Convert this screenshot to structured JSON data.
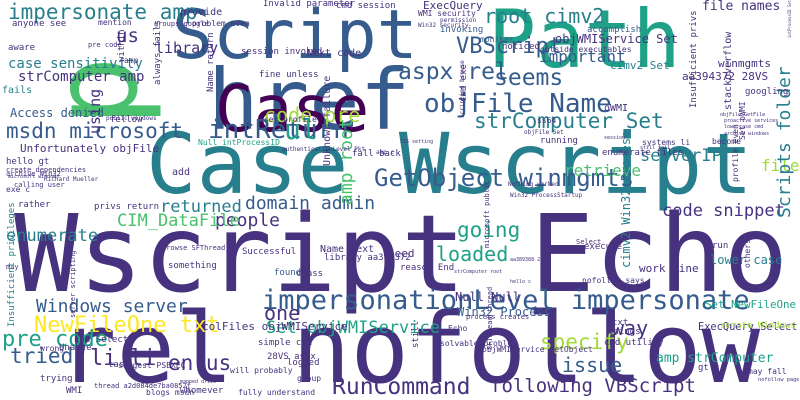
{
  "palette": {
    "dark_purple": "#440154",
    "indigo": "#46327e",
    "blue": "#365c8d",
    "steel_blue": "#277f8e",
    "teal": "#1fa187",
    "green": "#4ac16d",
    "lime": "#a0da39",
    "yellow": "#fde725"
  },
  "words": [
    {
      "id": "wscript-echo",
      "text": "Wscript Echo",
      "c": "indigo"
    },
    {
      "id": "rel-nofollow",
      "text": "rel nofollow",
      "c": "indigo"
    },
    {
      "id": "case-wscript",
      "text": "Case Wscript",
      "c": "steel_blue"
    },
    {
      "id": "href",
      "text": "href",
      "c": "blue"
    },
    {
      "id": "script",
      "text": "Script",
      "c": "blue"
    },
    {
      "id": "path",
      "text": "Path",
      "c": "teal"
    },
    {
      "id": "p",
      "text": "p",
      "c": "green"
    },
    {
      "id": "case",
      "text": "Case",
      "c": "dark_purple"
    },
    {
      "id": "impersonationlevel-impersonate",
      "text": "impersonationLevel impersonate",
      "c": "blue"
    },
    {
      "id": "objfile-name",
      "text": "objFile Name",
      "c": "blue"
    },
    {
      "id": "intreturn",
      "text": "intReturn",
      "c": "blue"
    },
    {
      "id": "msdn-microsoft",
      "text": "msdn microsoft",
      "c": "blue"
    },
    {
      "id": "getobject-winmgmts",
      "text": "GetObject winmgmts",
      "c": "blue"
    },
    {
      "id": "aspx-rel",
      "text": "aspx rel",
      "c": "blue"
    },
    {
      "id": "vbscript",
      "text": "VBScript",
      "c": "blue"
    },
    {
      "id": "root-cimv2",
      "text": "root cimv2",
      "c": "steel_blue"
    },
    {
      "id": "seems",
      "text": "seems",
      "c": "blue"
    },
    {
      "id": "strcomputer-set",
      "text": "strComputer Set",
      "c": "steel_blue"
    },
    {
      "id": "newfileone-txt",
      "text": "NewFileOne txt",
      "c": "yellow"
    },
    {
      "id": "runcommand",
      "text": "RunCommand",
      "c": "indigo"
    },
    {
      "id": "windows-server",
      "text": "Windows server",
      "c": "blue"
    },
    {
      "id": "following-vbscript",
      "text": "following VBScript",
      "c": "indigo"
    },
    {
      "id": "specify",
      "text": "specify",
      "c": "lime"
    },
    {
      "id": "pre-code-2",
      "text": "pre code",
      "c": "teal"
    },
    {
      "id": "li-li",
      "text": "li li",
      "c": "indigo"
    },
    {
      "id": "en-us",
      "text": "en us",
      "c": "indigo"
    },
    {
      "id": "tried",
      "text": "tried",
      "c": "blue"
    },
    {
      "id": "issue",
      "text": "issue",
      "c": "blue"
    },
    {
      "id": "set-objwmiservice",
      "text": "Set objWMIService",
      "c": "teal"
    },
    {
      "id": "one",
      "text": "one",
      "c": "indigo"
    },
    {
      "id": "way",
      "text": "way",
      "c": "indigo"
    },
    {
      "id": "loaded",
      "text": "loaded",
      "c": "teal"
    },
    {
      "id": "going",
      "text": "going",
      "c": "teal"
    },
    {
      "id": "code-snippet",
      "text": "code snippet",
      "c": "indigo"
    },
    {
      "id": "domain-admin",
      "text": "domain admin",
      "c": "blue"
    },
    {
      "id": "people",
      "text": "people",
      "c": "indigo"
    },
    {
      "id": "returned",
      "text": "returned",
      "c": "steel_blue"
    },
    {
      "id": "cim-datafile",
      "text": "CIM_DataFile",
      "c": "green"
    },
    {
      "id": "enumerate",
      "text": "enumerate",
      "c": "steel_blue"
    },
    {
      "id": "impersonate-amp",
      "text": "impersonate amp",
      "c": "steel_blue"
    },
    {
      "id": "case-sensitivity",
      "text": "case sensitivity",
      "c": "steel_blue"
    },
    {
      "id": "strcomputer-amp",
      "text": "strComputer amp",
      "c": "indigo"
    },
    {
      "id": "access-denied",
      "text": "Access denied",
      "c": "blue"
    },
    {
      "id": "unfortunately-objfile",
      "text": "Unfortunately objFile",
      "c": "indigo"
    },
    {
      "id": "us",
      "text": "us",
      "c": "indigo"
    },
    {
      "id": "library",
      "text": "library",
      "c": "indigo"
    },
    {
      "id": "using",
      "text": "using",
      "c": "indigo"
    },
    {
      "id": "code-pre",
      "text": "code pre",
      "c": "lime"
    },
    {
      "id": "amp-root",
      "text": "amp root",
      "c": "green"
    },
    {
      "id": "ul",
      "text": "ul",
      "c": "teal"
    },
    {
      "id": "serverip",
      "text": "serverIP",
      "c": "steel_blue"
    },
    {
      "id": "retrieve",
      "text": "retrieve",
      "c": "green"
    },
    {
      "id": "important",
      "text": "important",
      "c": "blue"
    },
    {
      "id": "file",
      "text": "file",
      "c": "lime"
    },
    {
      "id": "scripts-folder",
      "text": "Scripts folder",
      "c": "steel_blue"
    },
    {
      "id": "file-names",
      "text": "file names",
      "c": "indigo"
    },
    {
      "id": "objwmiservice-set",
      "text": "objWMIService Set",
      "c": "indigo"
    },
    {
      "id": "aa394372-28vs",
      "text": "aa394372 28VS",
      "c": "indigo"
    },
    {
      "id": "winmgmts",
      "text": "winmgmts",
      "c": "indigo"
    },
    {
      "id": "cimv2-set",
      "text": "cimv2 Set",
      "c": "steel_blue"
    },
    {
      "id": "cimv2-win32-process",
      "text": "cimv2 Win32 Process",
      "c": "steel_blue"
    },
    {
      "id": "win32-process",
      "text": "Win32 Process",
      "c": "blue"
    },
    {
      "id": "null-null",
      "text": "Null Null",
      "c": "indigo"
    },
    {
      "id": "need",
      "text": "need",
      "c": "indigo"
    },
    {
      "id": "work-fine",
      "text": "work fine",
      "c": "indigo"
    },
    {
      "id": "lower-case",
      "text": "lower case",
      "c": "steel_blue"
    },
    {
      "id": "execquery-select",
      "text": "ExecQuery Select",
      "c": "indigo"
    },
    {
      "id": "amp-strcomputer",
      "text": "amp strComputer",
      "c": "teal"
    },
    {
      "id": "set-newfileone",
      "text": "Set NewFileOne",
      "c": "teal"
    },
    {
      "id": "colfiles-objwmiservice",
      "text": "colFiles objWMIService",
      "c": "indigo"
    },
    {
      "id": "execquery",
      "text": "ExecQuery",
      "c": "indigo"
    },
    {
      "id": "invalid-parameter",
      "text": "Invalid parameter",
      "c": "indigo"
    },
    {
      "id": "cmd-session",
      "text": "cmd session",
      "c": "indigo"
    },
    {
      "id": "wmi-security",
      "text": "WMI security",
      "c": "indigo"
    },
    {
      "id": "session-invoked",
      "text": "session invoked",
      "c": "indigo"
    },
    {
      "id": "next-code",
      "text": "Next code",
      "c": "indigo"
    },
    {
      "id": "invoking",
      "text": "invoking",
      "c": "blue"
    },
    {
      "id": "accomplish",
      "text": "accomplish",
      "c": "blue"
    },
    {
      "id": "noticed",
      "text": "noticed",
      "c": "indigo"
    },
    {
      "id": "outside-executables",
      "text": "outside executables",
      "c": "indigo"
    },
    {
      "id": "moniker",
      "text": "moniker",
      "c": "blue"
    },
    {
      "id": "fine-unless",
      "text": "fine unless",
      "c": "indigo"
    },
    {
      "id": "null-intprocessid",
      "text": "Null intProcessID",
      "c": "teal"
    },
    {
      "id": "name-next",
      "text": "Name Next",
      "c": "indigo"
    },
    {
      "id": "library-aa394372",
      "text": "library aa394372",
      "c": "indigo"
    },
    {
      "id": "successful",
      "text": "Successful",
      "c": "indigo"
    },
    {
      "id": "found",
      "text": "found",
      "c": "blue"
    },
    {
      "id": "class",
      "text": "class",
      "c": "indigo"
    },
    {
      "id": "echo",
      "text": "Echo",
      "c": "indigo"
    },
    {
      "id": "simple-cmd",
      "text": "simple cmd",
      "c": "indigo"
    },
    {
      "id": "28vs-aspx",
      "text": "28VS aspx",
      "c": "indigo"
    },
    {
      "id": "unable",
      "text": "Unable",
      "c": "indigo"
    },
    {
      "id": "end-select",
      "text": "End Select",
      "c": "indigo"
    },
    {
      "id": "insufficient-privileges",
      "text": "Insufficient privileges",
      "c": "steel_blue"
    },
    {
      "id": "wrong",
      "text": "wrong",
      "c": "indigo"
    },
    {
      "id": "trying",
      "text": "trying",
      "c": "indigo"
    },
    {
      "id": "wmi",
      "text": "WMI",
      "c": "indigo"
    },
    {
      "id": "task",
      "text": "task",
      "c": "indigo"
    },
    {
      "id": "group",
      "text": "group",
      "c": "indigo"
    },
    {
      "id": "logged",
      "text": "logged",
      "c": "indigo"
    },
    {
      "id": "things",
      "text": "things",
      "c": "indigo"
    },
    {
      "id": "txt",
      "text": "txt",
      "c": "indigo"
    },
    {
      "id": "cmd-utility",
      "text": "cmd utility",
      "c": "indigo"
    },
    {
      "id": "remote-windows",
      "text": "remote Windows",
      "c": "lime"
    },
    {
      "id": "may-fall",
      "text": "may fall",
      "c": "indigo"
    },
    {
      "id": "gt-c",
      "text": "gt c",
      "c": "indigo"
    },
    {
      "id": "execute",
      "text": "execute",
      "c": "indigo"
    },
    {
      "id": "run",
      "text": "run",
      "c": "indigo"
    },
    {
      "id": "others",
      "text": "others",
      "c": "indigo"
    },
    {
      "id": "select",
      "text": "Select",
      "c": "indigo"
    },
    {
      "id": "enumerate-files",
      "text": "enumerate files",
      "c": "indigo"
    },
    {
      "id": "running",
      "text": "running",
      "c": "indigo"
    },
    {
      "id": "systems-li",
      "text": "systems li",
      "c": "indigo"
    },
    {
      "id": "become",
      "text": "become",
      "c": "indigo"
    },
    {
      "id": "ss64",
      "text": "ss64",
      "c": "indigo"
    },
    {
      "id": "googling",
      "text": "googling",
      "c": "indigo"
    },
    {
      "id": "intprocessid-set",
      "text": "intProcessID Set",
      "c": "indigo"
    },
    {
      "id": "owmi",
      "text": "oWMI",
      "c": "indigo"
    },
    {
      "id": "anyone-see",
      "text": "anyone see",
      "c": "indigo"
    },
    {
      "id": "mention",
      "text": "mention",
      "c": "indigo"
    },
    {
      "id": "aware",
      "text": "aware",
      "c": "indigo"
    },
    {
      "id": "fails",
      "text": "fails",
      "c": "steel_blue"
    },
    {
      "id": "hello-gt",
      "text": "hello gt",
      "c": "indigo"
    },
    {
      "id": "add",
      "text": "add",
      "c": "indigo"
    },
    {
      "id": "something",
      "text": "something",
      "c": "indigo"
    },
    {
      "id": "reason-end",
      "text": "reason End",
      "c": "indigo"
    },
    {
      "id": "rather",
      "text": "rather",
      "c": "indigo"
    },
    {
      "id": "privs-return",
      "text": "privs return",
      "c": "indigo"
    },
    {
      "id": "may",
      "text": "may",
      "c": "indigo"
    },
    {
      "id": "whomever",
      "text": "whomever",
      "c": "indigo"
    },
    {
      "id": "blogs-msdn",
      "text": "blogs msdn",
      "c": "indigo"
    },
    {
      "id": "fully-understand",
      "text": "fully understand",
      "c": "indigo"
    },
    {
      "id": "will-probably",
      "text": "will probably",
      "c": "indigo"
    },
    {
      "id": "suggest-psexec",
      "text": "suggest PSEXEC",
      "c": "indigo"
    },
    {
      "id": "provide",
      "text": "provide",
      "c": "indigo"
    },
    {
      "id": "user-profile",
      "text": "user profile",
      "c": "indigo"
    },
    {
      "id": "unknown-failure",
      "text": "Unknown failure",
      "c": "indigo"
    },
    {
      "id": "fall-back",
      "text": "fall back",
      "c": "indigo"
    },
    {
      "id": "nofollow-says",
      "text": "nofollow says",
      "c": "indigo"
    },
    {
      "id": "objwmiservice-getobject",
      "text": "objWMIService GetObject",
      "c": "indigo"
    },
    {
      "id": "cmd-exe",
      "text": "cmd exe",
      "c": "indigo"
    },
    {
      "id": "thread-a2d084de7ba0852f",
      "text": "thread a2d084de7ba0852f",
      "c": "indigo"
    },
    {
      "id": "server-scripting",
      "text": "server scripting",
      "c": "indigo"
    },
    {
      "id": "process-creates",
      "text": "process creates",
      "c": "indigo"
    },
    {
      "id": "solvable-problem",
      "text": "solvable problem",
      "c": "indigo"
    },
    {
      "id": "fellow",
      "text": "fellow",
      "c": "indigo"
    },
    {
      "id": "within",
      "text": "within",
      "c": "indigo"
    },
    {
      "id": "always-fails",
      "text": "always fails",
      "c": "indigo"
    },
    {
      "id": "name-return",
      "text": "Name return",
      "c": "indigo"
    },
    {
      "id": "problem-even",
      "text": "problem even",
      "c": "indigo"
    },
    {
      "id": "create-dependencies",
      "text": "create dependencies",
      "c": "indigo"
    },
    {
      "id": "archive-win32",
      "text": "archive Win32",
      "c": "indigo"
    },
    {
      "id": "exe-c",
      "text": "exe c",
      "c": "indigo"
    },
    {
      "id": "calling-user",
      "text": "calling user",
      "c": "indigo"
    },
    {
      "id": "browse-sfthread",
      "text": "browse SFThread",
      "c": "indigo"
    },
    {
      "id": "microsoft-public",
      "text": "microsoft public",
      "c": "indigo"
    },
    {
      "id": "stackoverflow",
      "text": "stackoverflow",
      "c": "indigo"
    },
    {
      "id": "insufficient-privs",
      "text": "Insufficient privs",
      "c": "indigo"
    },
    {
      "id": "profile-even",
      "text": "profile even",
      "c": "indigo"
    },
    {
      "id": "set-owmi",
      "text": "Set oWMI",
      "c": "indigo"
    },
    {
      "id": "sfthread-thread",
      "text": "SFThread thread",
      "c": "indigo"
    },
    {
      "id": "still",
      "text": "still",
      "c": "indigo"
    },
    {
      "id": "groups-google",
      "text": "groups google",
      "c": "indigo"
    },
    {
      "id": "win32-security",
      "text": "Win32 security",
      "c": "indigo"
    },
    {
      "id": "pre-code-1",
      "text": "pre code",
      "c": "indigo"
    },
    {
      "id": "amp",
      "text": "amp",
      "c": "indigo"
    },
    {
      "id": "nothing-worked",
      "text": "Nothing worked",
      "c": "indigo"
    },
    {
      "id": "win32-processstartup",
      "text": "Win32 ProcessStartup",
      "c": "indigo"
    },
    {
      "id": "richard-mueller",
      "text": "Richard Mueller",
      "c": "indigo"
    },
    {
      "id": "permission",
      "text": "permission",
      "c": "indigo"
    },
    {
      "id": "scripting-browse",
      "text": "scripting browse",
      "c": "indigo"
    },
    {
      "id": "public-windows",
      "text": "public windows",
      "c": "indigo"
    },
    {
      "id": "authenticationlevel-pkt",
      "text": "authenticationLevel Pkt",
      "c": "indigo"
    },
    {
      "id": "objfile-set",
      "text": "objFile Set",
      "c": "indigo"
    },
    {
      "id": "amp-c",
      "text": "amp c",
      "c": "indigo"
    },
    {
      "id": "nofollow-page",
      "text": "nofollow page",
      "c": "indigo"
    },
    {
      "id": "objfile-getfile",
      "text": "objFile GetFile",
      "c": "indigo"
    },
    {
      "id": "lowercase-cmd",
      "text": "lowercase cmd",
      "c": "indigo"
    },
    {
      "id": "archive-windows",
      "text": "archive windows",
      "c": "indigo"
    },
    {
      "id": "proactive-services",
      "text": "proactive services",
      "c": "indigo"
    },
    {
      "id": "iis-setting",
      "text": "IIS setting",
      "c": "indigo"
    },
    {
      "id": "aa389388-28vs",
      "text": "aa389388 28VS",
      "c": "indigo"
    },
    {
      "id": "hello-c",
      "text": "hello c",
      "c": "indigo"
    },
    {
      "id": "mapped-drive",
      "text": "mapped drive",
      "c": "indigo"
    },
    {
      "id": "still-fail",
      "text": "still fail",
      "c": "indigo"
    },
    {
      "id": "microsoft-windows",
      "text": "microsoft windows",
      "c": "indigo"
    },
    {
      "id": "session",
      "text": "session",
      "c": "indigo"
    },
    {
      "id": "strcomputer-root",
      "text": "strComputer root",
      "c": "indigo"
    }
  ]
}
